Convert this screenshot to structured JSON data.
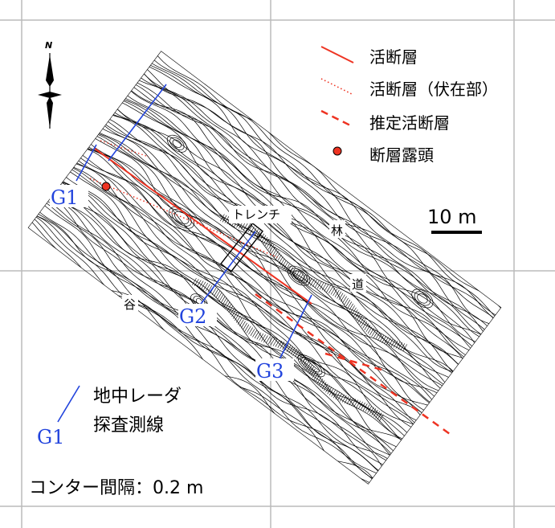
{
  "legend": {
    "active_fault": "活断層",
    "active_fault_buried": "活断層（伏在部）",
    "inferred_active_fault": "推定活断層",
    "fault_outcrop": "断層露頭",
    "gpr_line_id": "G1",
    "gpr_line_label_1": "地中レーダ",
    "gpr_line_label_2": "探査測線"
  },
  "north_arrow": {
    "symbol": "N"
  },
  "scale_bar": {
    "label": "10 m"
  },
  "contour_interval": "コンター間隔：0.2 m",
  "map_labels": {
    "trench": "トレンチ",
    "forest_road_1": "林",
    "forest_road_2": "道",
    "valley": "谷"
  },
  "gpr_lines": [
    "G1",
    "G2",
    "G3"
  ],
  "colors": {
    "fault": "#ee3322",
    "gpr": "#2244dd",
    "contour": "#000000",
    "grid": "#bbbbbb"
  }
}
